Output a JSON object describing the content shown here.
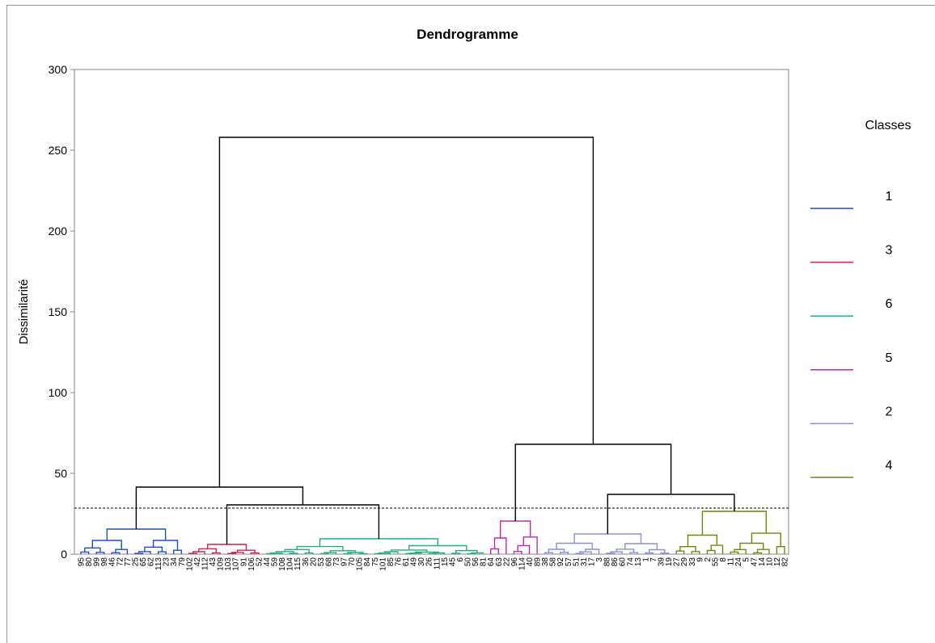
{
  "chart_data": {
    "type": "dendrogram",
    "title": "Dendrogramme",
    "ylabel": "Dissimilarité",
    "xlabel": "",
    "ylim": [
      0,
      300
    ],
    "y_ticks": [
      0,
      50,
      100,
      150,
      200,
      250,
      300
    ],
    "truncation_line": 28.5,
    "grid": false,
    "legend": {
      "title": "Classes",
      "placement": "right",
      "entries": [
        {
          "label": "1",
          "color": "#1f4fc6"
        },
        {
          "label": "3",
          "color": "#d0204f"
        },
        {
          "label": "6",
          "color": "#21b07a"
        },
        {
          "label": "5",
          "color": "#c42aa6"
        },
        {
          "label": "2",
          "color": "#8a8fd6"
        },
        {
          "label": "4",
          "color": "#6e8a0a"
        }
      ]
    },
    "leaf_labels": [
      "95",
      "80",
      "99",
      "98",
      "46",
      "72",
      "77",
      "25",
      "65",
      "62",
      "113",
      "23",
      "34",
      "79",
      "102",
      "42",
      "112",
      "43",
      "109",
      "103",
      "107",
      "91",
      "106",
      "52",
      "44",
      "59",
      "108",
      "104",
      "115",
      "36",
      "20",
      "53",
      "68",
      "73",
      "97",
      "70",
      "105",
      "84",
      "75",
      "101",
      "85",
      "76",
      "61",
      "49",
      "30",
      "26",
      "111",
      "15",
      "45",
      "6",
      "50",
      "56",
      "81",
      "64",
      "63",
      "22",
      "96",
      "114",
      "40",
      "89",
      "38",
      "58",
      "92",
      "57",
      "51",
      "31",
      "17",
      "3",
      "88",
      "86",
      "60",
      "74",
      "13",
      "1",
      "7",
      "39",
      "19",
      "27",
      "29",
      "33",
      "9",
      "2",
      "55",
      "8",
      "11",
      "24",
      "5",
      "47",
      "14",
      "10",
      "12",
      "82"
    ],
    "merges": [
      {
        "left": 0,
        "right": 1,
        "height": 258.0,
        "color": "#000000"
      },
      {
        "left": 0,
        "right": 1,
        "height": 41.5,
        "color": "#000000"
      },
      {
        "left": 0,
        "right": 1,
        "height": 30.5,
        "color": "#000000"
      },
      {
        "left": 0,
        "right": 1,
        "height": 68.0,
        "color": "#000000"
      },
      {
        "left": 0,
        "right": 1,
        "height": 37.0,
        "color": "#000000"
      },
      {
        "left": 0,
        "right": 1,
        "height": 15.5,
        "color": "#1f4fc6"
      },
      {
        "left": 0,
        "right": 1,
        "height": 6.0,
        "color": "#d0204f"
      },
      {
        "left": 0,
        "right": 1,
        "height": 9.5,
        "color": "#21b07a"
      },
      {
        "left": 0,
        "right": 1,
        "height": 20.5,
        "color": "#c42aa6"
      },
      {
        "left": 0,
        "right": 1,
        "height": 12.5,
        "color": "#8a8fd6"
      },
      {
        "left": 0,
        "right": 1,
        "height": 26.5,
        "color": "#6e8a0a"
      }
    ]
  }
}
